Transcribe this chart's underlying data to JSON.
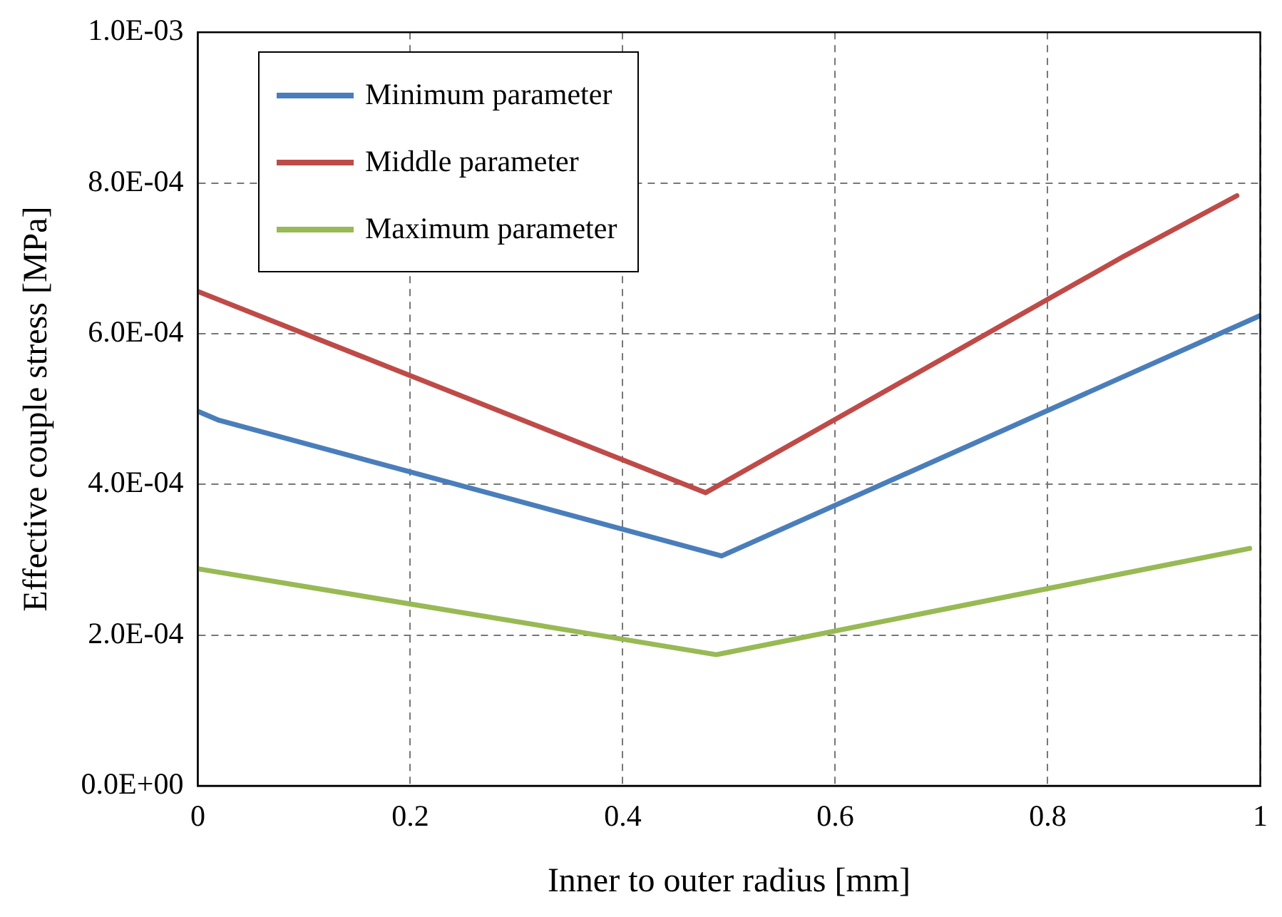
{
  "chart_data": {
    "type": "line",
    "xlabel": "Inner to outer radius [mm]",
    "ylabel": "Effective couple stress [MPa]",
    "xlim": [
      0,
      1
    ],
    "xticks": [
      0,
      0.2,
      0.4,
      0.6,
      0.8,
      1
    ],
    "ylim": [
      0,
      0.001
    ],
    "yticks": [
      {
        "value": 0,
        "label": "0.0E+00"
      },
      {
        "value": 0.0002,
        "label": "2.0E-04"
      },
      {
        "value": 0.0004,
        "label": "4.0E-04"
      },
      {
        "value": 0.0006,
        "label": "6.0E-04"
      },
      {
        "value": 0.0008,
        "label": "8.0E-04"
      },
      {
        "value": 0.001,
        "label": "1.0E-03"
      }
    ],
    "grid": true,
    "legend": "top left",
    "marker": "none",
    "line_style": "solid",
    "series": [
      {
        "name": "Minimum parameter",
        "color": "#4a7ebb",
        "x": [
          0,
          0.02,
          0.493,
          1
        ],
        "values": [
          0.000497,
          0.000485,
          0.000305,
          0.000624
        ]
      },
      {
        "name": "Middle parameter",
        "color": "#be4b48",
        "x": [
          0,
          0.478,
          0.872,
          0.978
        ],
        "values": [
          0.000656,
          0.000389,
          0.000703,
          0.000783
        ]
      },
      {
        "name": "Maximum parameter",
        "color": "#98b954",
        "x": [
          0,
          0.488,
          0.872,
          0.99
        ],
        "values": [
          0.000288,
          0.000174,
          0.000282,
          0.000315
        ]
      }
    ]
  }
}
